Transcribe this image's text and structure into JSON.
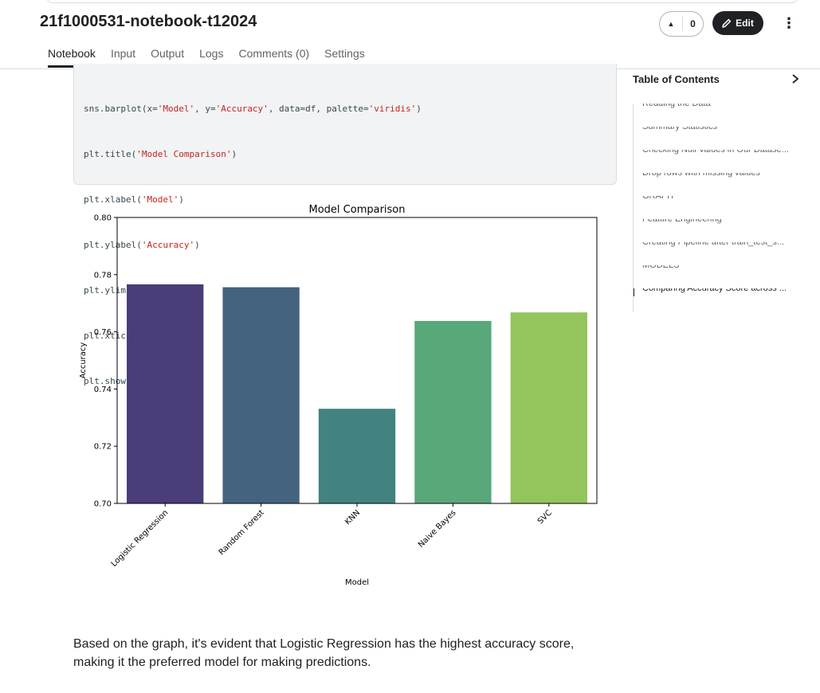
{
  "notebook": {
    "title": "21f1000531-notebook-t12024"
  },
  "vote": {
    "count": "0"
  },
  "actions": {
    "edit_label": "Edit"
  },
  "tabs": [
    "Notebook",
    "Input",
    "Output",
    "Logs",
    "Comments (0)",
    "Settings"
  ],
  "active_tab": "Notebook",
  "code_lines": [
    "sns.barplot(x='Model', y='Accuracy', data=df, palette='viridis')",
    "plt.title('Model Comparison')",
    "plt.xlabel('Model')",
    "plt.ylabel('Accuracy')",
    "plt.ylim(0.7, 0.8)",
    "plt.xticks(rotation=45)",
    "plt.show()"
  ],
  "chart_data": {
    "type": "bar",
    "title": "Model Comparison",
    "xlabel": "Model",
    "ylabel": "Accuracy",
    "ylim": [
      0.7,
      0.8
    ],
    "yticks": [
      "0.70",
      "0.72",
      "0.74",
      "0.76",
      "0.78",
      "0.80"
    ],
    "categories": [
      "Logistic Regression",
      "Random Forest",
      "KNN",
      "Naive Bayes",
      "SVC"
    ],
    "values": [
      0.7766,
      0.7756,
      0.7331,
      0.7638,
      0.7668
    ],
    "colors": [
      "#4a3d78",
      "#43637f",
      "#428280",
      "#58a87a",
      "#94c45c"
    ],
    "grid": false,
    "legend": "none",
    "xtick_rotation": 45
  },
  "conclusion": "Based on the graph, it's evident that Logistic Regression has the highest accuracy score, making it the preferred model for making predictions.",
  "toc": {
    "title": "Table of Contents",
    "items": [
      "Reading the Data",
      "Summary Statistics",
      "Checking Null Values in Our Datase...",
      "Drop rows with missing values",
      "GRAPH",
      "Feature Engineering",
      "Creating Pipeline after train_test_s...",
      "MODELS",
      "Comparing Accuracy Score across ..."
    ],
    "active_index": 8
  },
  "icons": {
    "upvote": "triangle-up-icon",
    "edit": "pencil-icon",
    "more": "vertical-dots-icon",
    "toc_toggle": "chevron-right-icon"
  }
}
